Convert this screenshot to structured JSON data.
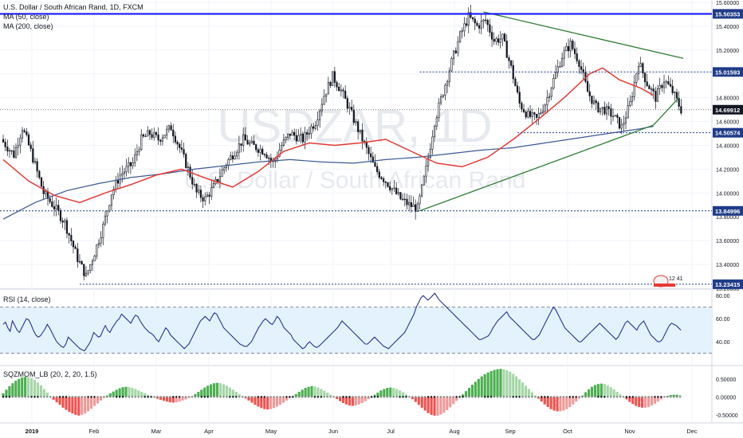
{
  "header": {
    "title": "U.S. Dollar / South African Rand, 1D, FXCM",
    "ma50_label": "MA (50, close)",
    "ma200_label": "MA (200, close)",
    "rsi_label": "RSI (14, close)",
    "sqz_label": "SQZMOM_LB (20, 2, 20, 1.5)"
  },
  "watermark": {
    "symbol": "USDZAR, 1D",
    "name": "U.S. Dollar / South African Rand"
  },
  "badge_text": "12 41",
  "colors": {
    "up": "#26a69a",
    "candle": "#131722",
    "ma50": "#e53935",
    "ma200": "#3d5a96",
    "trend": "#2e7d32",
    "resistance": "#1a1aff",
    "level": "#1f3c88",
    "rsi": "#283593",
    "rsi_band": "#e3f2fd",
    "sqz_up": "#4caf50",
    "sqz_down": "#ef5350",
    "scale_label_bg": "#1f3c88"
  },
  "chart_data": [
    {
      "type": "candlestick",
      "title": "U.S. Dollar / South African Rand, 1D, FXCM",
      "ylim": [
        13.2,
        15.62
      ],
      "ticks_y": [
        "15.60000",
        "15.40000",
        "15.20000",
        "15.00000",
        "14.80000",
        "14.60000",
        "14.40000",
        "14.20000",
        "14.00000",
        "13.80000",
        "13.60000",
        "13.40000",
        "13.20000"
      ],
      "tick_values_y": [
        15.6,
        15.4,
        15.2,
        15.0,
        14.8,
        14.6,
        14.4,
        14.2,
        14.0,
        13.8,
        13.6,
        13.4,
        13.2
      ],
      "x_labels": [
        "2019",
        "Feb",
        "Mar",
        "Apr",
        "May",
        "Jun",
        "Jul",
        "Aug",
        "Sep",
        "Oct",
        "Nov",
        "Dec"
      ],
      "price_levels": [
        {
          "label": "15.50353",
          "value": 15.50353,
          "style": "resistance"
        },
        {
          "label": "15.01593",
          "value": 15.01593,
          "style": "dotted"
        },
        {
          "label": "14.69912",
          "value": 14.69912,
          "style": "last"
        },
        {
          "label": "14.50574",
          "value": 14.50574,
          "style": "dotted"
        },
        {
          "label": "13.84996",
          "value": 13.84996,
          "style": "dotted"
        },
        {
          "label": "13.23415",
          "value": 13.23415,
          "style": "dotted"
        }
      ],
      "series": [
        {
          "name": "MA (50, close)",
          "points": [
            [
              0,
              14.28
            ],
            [
              12,
              14.1
            ],
            [
              24,
              13.98
            ],
            [
              36,
              13.92
            ],
            [
              48,
              14.0
            ],
            [
              60,
              14.07
            ],
            [
              72,
              14.15
            ],
            [
              84,
              14.2
            ],
            [
              96,
              14.12
            ],
            [
              108,
              14.05
            ],
            [
              120,
              14.18
            ],
            [
              132,
              14.35
            ],
            [
              144,
              14.42
            ],
            [
              156,
              14.4
            ],
            [
              168,
              14.42
            ],
            [
              180,
              14.45
            ],
            [
              192,
              14.35
            ],
            [
              204,
              14.25
            ],
            [
              216,
              14.22
            ],
            [
              228,
              14.3
            ],
            [
              240,
              14.45
            ],
            [
              252,
              14.62
            ],
            [
              264,
              14.8
            ],
            [
              276,
              15.0
            ],
            [
              282,
              15.05
            ],
            [
              290,
              14.95
            ],
            [
              300,
              14.88
            ],
            [
              306,
              14.82
            ]
          ]
        },
        {
          "name": "MA (200, close)",
          "points": [
            [
              0,
              13.78
            ],
            [
              15,
              13.92
            ],
            [
              30,
              14.02
            ],
            [
              45,
              14.08
            ],
            [
              60,
              14.13
            ],
            [
              75,
              14.16
            ],
            [
              90,
              14.2
            ],
            [
              105,
              14.23
            ],
            [
              120,
              14.26
            ],
            [
              135,
              14.28
            ],
            [
              150,
              14.26
            ],
            [
              165,
              14.25
            ],
            [
              180,
              14.28
            ],
            [
              195,
              14.3
            ],
            [
              210,
              14.33
            ],
            [
              225,
              14.36
            ],
            [
              240,
              14.38
            ],
            [
              255,
              14.42
            ],
            [
              270,
              14.46
            ],
            [
              285,
              14.5
            ],
            [
              300,
              14.54
            ],
            [
              306,
              14.56
            ]
          ]
        }
      ],
      "trendlines": [
        {
          "from": [
            226,
            15.52
          ],
          "to": [
            320,
            15.13
          ]
        },
        {
          "from": [
            196,
            13.85
          ],
          "to": [
            306,
            14.57
          ]
        },
        {
          "from": [
            306,
            14.57
          ],
          "to": [
            318,
            14.8
          ]
        }
      ]
    },
    {
      "type": "line",
      "title": "RSI (14, close)",
      "ylim": [
        20,
        85
      ],
      "ticks_y": [
        "80.00",
        "60.00",
        "40.00"
      ],
      "tick_values_y": [
        80,
        60,
        40
      ],
      "band": [
        30,
        70
      ],
      "series": [
        {
          "name": "RSI (14, close)",
          "values": [
            55,
            57,
            52,
            49,
            58,
            54,
            50,
            48,
            52,
            56,
            60,
            59,
            55,
            50,
            46,
            44,
            45,
            48,
            51,
            55,
            52,
            48,
            44,
            40,
            38,
            36,
            35,
            38,
            44,
            42,
            40,
            38,
            36,
            34,
            33,
            32,
            35,
            38,
            42,
            48,
            46,
            44,
            45,
            50,
            54,
            50,
            48,
            52,
            55,
            58,
            60,
            64,
            62,
            60,
            58,
            56,
            60,
            63,
            62,
            58,
            55,
            52,
            50,
            48,
            47,
            45,
            42,
            40,
            44,
            48,
            52,
            50,
            46,
            44,
            42,
            40,
            38,
            36,
            34,
            36,
            38,
            42,
            46,
            50,
            54,
            58,
            60,
            62,
            60,
            58,
            62,
            65,
            64,
            60,
            56,
            52,
            50,
            48,
            46,
            44,
            42,
            40,
            38,
            37,
            36,
            36,
            38,
            40,
            44,
            48,
            52,
            55,
            58,
            60,
            58,
            56,
            55,
            58,
            62,
            60,
            56,
            52,
            50,
            48,
            46,
            42,
            40,
            38,
            36,
            34,
            35,
            38,
            40,
            38,
            36,
            35,
            36,
            38,
            40,
            42,
            44,
            46,
            48,
            50,
            52,
            55,
            58,
            56,
            54,
            52,
            50,
            48,
            46,
            44,
            42,
            40,
            38,
            38,
            40,
            42,
            44,
            42,
            40,
            38,
            36,
            35,
            34,
            36,
            38,
            40,
            42,
            44,
            46,
            48,
            52,
            56,
            60,
            64,
            70,
            74,
            78,
            80,
            78,
            76,
            78,
            80,
            82,
            79,
            76,
            74,
            72,
            70,
            68,
            66,
            64,
            62,
            60,
            58,
            56,
            54,
            52,
            50,
            48,
            46,
            44,
            42,
            42,
            43,
            44,
            45,
            48,
            52,
            55,
            58,
            60,
            62,
            64,
            66,
            62,
            60,
            58,
            56,
            54,
            52,
            50,
            48,
            46,
            44,
            42,
            42,
            44,
            46,
            50,
            54,
            58,
            62,
            66,
            70,
            68,
            64,
            60,
            56,
            52,
            50,
            48,
            46,
            44,
            42,
            40,
            40,
            42,
            44,
            46,
            48,
            50,
            52,
            54,
            56,
            54,
            52,
            50,
            48,
            46,
            44,
            42,
            44,
            48,
            52,
            56,
            58,
            56,
            54,
            52,
            50,
            54,
            56,
            58,
            54,
            50,
            46,
            44,
            42,
            40,
            40,
            42,
            46,
            50,
            54,
            56,
            55,
            54,
            52,
            50
          ]
        }
      ]
    },
    {
      "type": "bar",
      "title": "SQZMOM_LB (20, 2, 20, 1.5)",
      "ylim": [
        -0.7,
        0.85
      ],
      "ticks_y": [
        "0.50000",
        "0.00000",
        "-0.50000"
      ],
      "tick_values_y": [
        0.5,
        0.0,
        -0.5
      ],
      "series": [
        {
          "name": "SQZMOM_LB (20, 2, 20, 1.5)",
          "values": [
            0.1,
            0.2,
            0.3,
            0.38,
            0.45,
            0.5,
            0.54,
            0.56,
            0.55,
            0.52,
            0.47,
            0.4,
            0.32,
            0.22,
            0.12,
            0.02,
            -0.08,
            -0.15,
            -0.22,
            -0.3,
            -0.36,
            -0.42,
            -0.46,
            -0.5,
            -0.52,
            -0.5,
            -0.46,
            -0.4,
            -0.33,
            -0.25,
            -0.18,
            -0.1,
            -0.03,
            0.04,
            0.1,
            0.15,
            0.2,
            0.24,
            0.27,
            0.28,
            0.27,
            0.25,
            0.22,
            0.18,
            0.14,
            0.1,
            0.06,
            0.02,
            -0.02,
            -0.05,
            -0.08,
            -0.11,
            -0.13,
            -0.15,
            -0.16,
            -0.15,
            -0.13,
            -0.1,
            -0.07,
            -0.03,
            0.02,
            0.08,
            0.14,
            0.2,
            0.26,
            0.31,
            0.35,
            0.38,
            0.39,
            0.38,
            0.35,
            0.31,
            0.26,
            0.2,
            0.14,
            0.08,
            0.02,
            -0.04,
            -0.1,
            -0.16,
            -0.22,
            -0.27,
            -0.31,
            -0.34,
            -0.35,
            -0.34,
            -0.31,
            -0.27,
            -0.22,
            -0.16,
            -0.1,
            -0.04,
            0.02,
            0.08,
            0.14,
            0.2,
            0.25,
            0.28,
            0.3,
            0.29,
            0.26,
            0.22,
            0.17,
            0.12,
            0.06,
            0.0,
            -0.06,
            -0.12,
            -0.17,
            -0.21,
            -0.24,
            -0.25,
            -0.24,
            -0.21,
            -0.17,
            -0.12,
            -0.06,
            0.0,
            0.06,
            0.12,
            0.18,
            0.22,
            0.25,
            0.26,
            0.25,
            0.22,
            0.18,
            0.13,
            0.07,
            0.01,
            -0.06,
            -0.14,
            -0.22,
            -0.3,
            -0.38,
            -0.45,
            -0.5,
            -0.52,
            -0.52,
            -0.49,
            -0.44,
            -0.37,
            -0.29,
            -0.2,
            -0.11,
            -0.02,
            0.07,
            0.16,
            0.25,
            0.34,
            0.42,
            0.5,
            0.57,
            0.63,
            0.68,
            0.72,
            0.75,
            0.77,
            0.78,
            0.77,
            0.74,
            0.7,
            0.64,
            0.57,
            0.49,
            0.4,
            0.31,
            0.22,
            0.13,
            0.04,
            -0.05,
            -0.13,
            -0.21,
            -0.28,
            -0.34,
            -0.38,
            -0.4,
            -0.4,
            -0.38,
            -0.34,
            -0.28,
            -0.21,
            -0.13,
            -0.05,
            0.04,
            0.13,
            0.21,
            0.28,
            0.33,
            0.36,
            0.37,
            0.36,
            0.32,
            0.27,
            0.21,
            0.14,
            0.07,
            0.0,
            -0.07,
            -0.14,
            -0.2,
            -0.25,
            -0.28,
            -0.3,
            -0.3,
            -0.28,
            -0.24,
            -0.19,
            -0.13,
            -0.07,
            -0.01,
            0.03,
            0.05,
            0.06,
            0.06,
            0.05
          ]
        }
      ]
    }
  ]
}
